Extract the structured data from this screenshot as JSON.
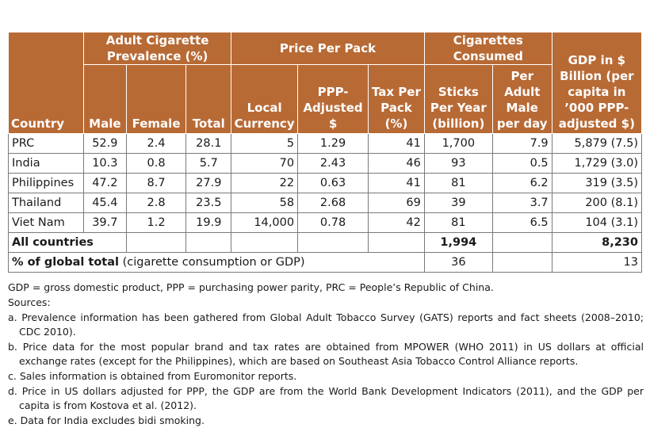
{
  "header": {
    "country": "Country",
    "prevalence_group": "Adult Cigarette Prevalence (%)",
    "price_group": "Price Per Pack",
    "consumed_group": "Cigarettes Consumed",
    "gdp": "GDP in $ Billion (per capita in ’000 PPP-adjusted $)",
    "male": "Male",
    "female": "Female",
    "total": "Total",
    "local_currency": "Local Currency",
    "ppp_adjusted": "PPP-Adjusted $",
    "tax_per_pack": "Tax Per Pack (%)",
    "sticks_per_year": "Sticks Per Year (billion)",
    "per_adult_male": "Per Adult Male per day"
  },
  "rows": [
    {
      "country": "PRC",
      "male": "52.9",
      "female": "2.4",
      "total": "28.1",
      "local": "5",
      "ppp": "1.29",
      "tax": "41",
      "sticks": "1,700",
      "per_male": "7.9",
      "gdp": "5,879 (7.5)"
    },
    {
      "country": "India",
      "male": "10.3",
      "female": "0.8",
      "total": "5.7",
      "local": "70",
      "ppp": "2.43",
      "tax": "46",
      "sticks": "93",
      "per_male": "0.5",
      "gdp": "1,729 (3.0)"
    },
    {
      "country": "Philippines",
      "male": "47.2",
      "female": "8.7",
      "total": "27.9",
      "local": "22",
      "ppp": "0.63",
      "tax": "41",
      "sticks": "81",
      "per_male": "6.2",
      "gdp": "319 (3.5)"
    },
    {
      "country": "Thailand",
      "male": "45.4",
      "female": "2.8",
      "total": "23.5",
      "local": "58",
      "ppp": "2.68",
      "tax": "69",
      "sticks": "39",
      "per_male": "3.7",
      "gdp": "200 (8.1)"
    },
    {
      "country": "Viet Nam",
      "male": "39.7",
      "female": "1.2",
      "total": "19.9",
      "local": "14,000",
      "ppp": "0.78",
      "tax": "42",
      "sticks": "81",
      "per_male": "6.5",
      "gdp": "104 (3.1)"
    }
  ],
  "all_countries": {
    "label": "All countries",
    "sticks": "1,994",
    "gdp": "8,230"
  },
  "global_total": {
    "label_bold": "% of global total",
    "label_rest": " (cigarette consumption or GDP)",
    "sticks": "36",
    "gdp": "13"
  },
  "notes": {
    "abbrev": "GDP = gross domestic product, PPP = purchasing power parity, PRC = People’s Republic of China.",
    "sources_label": "Sources:",
    "a": "a. Prevalence information has been gathered from Global Adult Tobacco Survey (GATS) reports and fact sheets (2008–2010; CDC 2010).",
    "b": "b. Price data for the most popular brand and tax rates are obtained from MPOWER (WHO 2011) in US dollars at official exchange rates (except for the Philippines), which are based on Southeast Asia Tobacco Control Alliance reports.",
    "c": "c. Sales information is obtained from Euromonitor reports.",
    "d": "d. Price in US dollars adjusted for PPP, the GDP are from the World Bank Development Indicators (2011), and the GDP per capita is from Kostova et al. (2012).",
    "e": "e. Data for India excludes bidi smoking."
  }
}
